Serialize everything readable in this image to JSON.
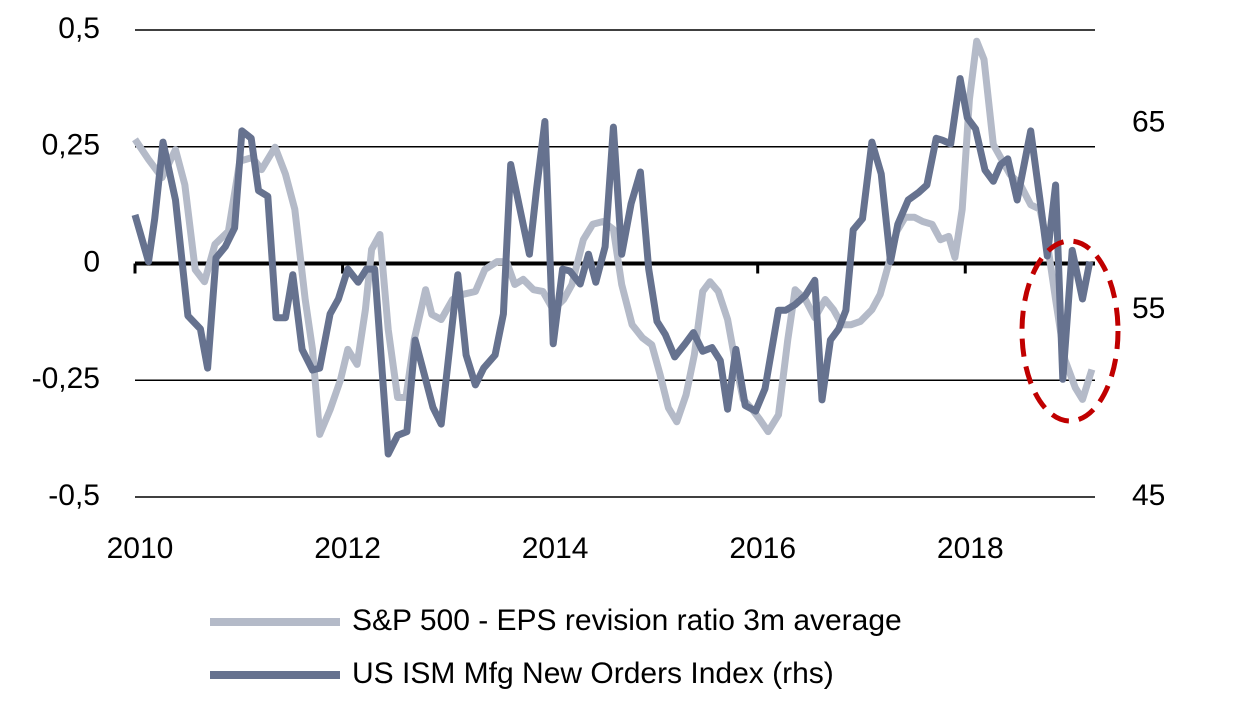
{
  "chart_data": {
    "type": "line",
    "xlim": [
      2010,
      2019.25
    ],
    "xticks": [
      2010,
      2012,
      2014,
      2016,
      2018
    ],
    "ylim": [
      -0.5,
      0.5
    ],
    "yticks": [
      {
        "value": -0.5,
        "label": "-0,5"
      },
      {
        "value": -0.25,
        "label": "-0,25"
      },
      0,
      {
        "value": 0.25,
        "label": "0,25"
      },
      {
        "value": 0.5,
        "label": "0,5"
      }
    ],
    "y2lim": [
      45,
      70
    ],
    "y2ticks": [
      45,
      55,
      65
    ],
    "grid": true,
    "legend": "bottom",
    "series": [
      {
        "name": "S&P 500 - EPS revision ratio 3m average",
        "color": "#b4bac8",
        "x": [
          2010.0,
          2010.13,
          2010.26,
          2010.39,
          2010.48,
          2010.58,
          2010.67,
          2010.77,
          2010.9,
          2011.01,
          2011.13,
          2011.22,
          2011.35,
          2011.45,
          2011.54,
          2011.64,
          2011.71,
          2011.78,
          2011.88,
          2011.98,
          2012.05,
          2012.14,
          2012.22,
          2012.28,
          2012.36,
          2012.44,
          2012.53,
          2012.61,
          2012.69,
          2012.8,
          2012.86,
          2012.95,
          2013.06,
          2013.16,
          2013.28,
          2013.37,
          2013.49,
          2013.58,
          2013.66,
          2013.74,
          2013.84,
          2013.93,
          2014.03,
          2014.13,
          2014.21,
          2014.32,
          2014.41,
          2014.51,
          2014.61,
          2014.69,
          2014.79,
          2014.89,
          2014.98,
          2015.06,
          2015.14,
          2015.22,
          2015.31,
          2015.39,
          2015.47,
          2015.54,
          2015.62,
          2015.71,
          2015.78,
          2015.86,
          2015.95,
          2016.02,
          2016.1,
          2016.2,
          2016.29,
          2016.36,
          2016.46,
          2016.55,
          2016.65,
          2016.73,
          2016.81,
          2016.9,
          2016.99,
          2017.1,
          2017.18,
          2017.26,
          2017.34,
          2017.42,
          2017.51,
          2017.59,
          2017.68,
          2017.76,
          2017.84,
          2017.9,
          2017.97,
          2018.04,
          2018.11,
          2018.18,
          2018.27,
          2018.34,
          2018.43,
          2018.53,
          2018.63,
          2018.72,
          2018.8,
          2018.87,
          2018.96,
          2019.06,
          2019.13,
          2019.22
        ],
        "values": [
          0.266,
          0.223,
          0.184,
          0.244,
          0.169,
          -0.013,
          -0.039,
          0.041,
          0.069,
          0.219,
          0.227,
          0.201,
          0.249,
          0.191,
          0.116,
          -0.077,
          -0.184,
          -0.366,
          -0.313,
          -0.249,
          -0.184,
          -0.216,
          -0.099,
          0.03,
          0.062,
          -0.141,
          -0.287,
          -0.287,
          -0.163,
          -0.056,
          -0.109,
          -0.12,
          -0.077,
          -0.066,
          -0.06,
          -0.013,
          0.004,
          0.004,
          -0.045,
          -0.034,
          -0.056,
          -0.06,
          -0.099,
          -0.077,
          -0.045,
          0.051,
          0.084,
          0.09,
          0.073,
          -0.045,
          -0.131,
          -0.159,
          -0.174,
          -0.238,
          -0.309,
          -0.339,
          -0.281,
          -0.195,
          -0.06,
          -0.039,
          -0.06,
          -0.12,
          -0.206,
          -0.291,
          -0.313,
          -0.334,
          -0.36,
          -0.324,
          -0.163,
          -0.056,
          -0.077,
          -0.116,
          -0.077,
          -0.099,
          -0.131,
          -0.131,
          -0.124,
          -0.099,
          -0.066,
          -0.002,
          0.069,
          0.099,
          0.099,
          0.09,
          0.084,
          0.051,
          0.058,
          0.013,
          0.116,
          0.351,
          0.476,
          0.437,
          0.255,
          0.227,
          0.191,
          0.169,
          0.126,
          0.116,
          0.03,
          -0.077,
          -0.206,
          -0.266,
          -0.291,
          -0.227
        ]
      },
      {
        "name": "US ISM Mfg New Orders Index (rhs)",
        "color": "#66728f",
        "axis": "y2",
        "x": [
          2010.0,
          2010.13,
          2010.19,
          2010.27,
          2010.39,
          2010.51,
          2010.63,
          2010.7,
          2010.78,
          2010.87,
          2010.96,
          2011.03,
          2011.12,
          2011.19,
          2011.28,
          2011.36,
          2011.45,
          2011.52,
          2011.61,
          2011.71,
          2011.78,
          2011.88,
          2011.96,
          2012.05,
          2012.15,
          2012.23,
          2012.31,
          2012.44,
          2012.53,
          2012.62,
          2012.7,
          2012.8,
          2012.87,
          2012.95,
          2013.04,
          2013.11,
          2013.19,
          2013.28,
          2013.36,
          2013.47,
          2013.55,
          2013.62,
          2013.71,
          2013.8,
          2013.87,
          2013.95,
          2014.03,
          2014.12,
          2014.19,
          2014.29,
          2014.37,
          2014.44,
          2014.53,
          2014.61,
          2014.69,
          2014.78,
          2014.87,
          2014.95,
          2015.03,
          2015.11,
          2015.2,
          2015.3,
          2015.38,
          2015.47,
          2015.56,
          2015.64,
          2015.71,
          2015.79,
          2015.88,
          2015.98,
          2016.07,
          2016.2,
          2016.27,
          2016.36,
          2016.46,
          2016.55,
          2016.62,
          2016.7,
          2016.78,
          2016.85,
          2016.92,
          2017.01,
          2017.1,
          2017.19,
          2017.28,
          2017.35,
          2017.45,
          2017.55,
          2017.63,
          2017.72,
          2017.78,
          2017.86,
          2017.95,
          2018.02,
          2018.1,
          2018.19,
          2018.27,
          2018.34,
          2018.41,
          2018.5,
          2018.63,
          2018.72,
          2018.79,
          2018.87,
          2018.94,
          2019.03,
          2019.13,
          2019.2
        ],
        "values": [
          60.1,
          57.6,
          59.9,
          64.0,
          60.9,
          54.7,
          54.0,
          51.9,
          57.8,
          58.4,
          59.4,
          64.6,
          64.2,
          61.4,
          61.1,
          54.6,
          54.6,
          56.9,
          52.9,
          51.8,
          51.9,
          54.8,
          55.6,
          57.2,
          56.5,
          57.2,
          57.2,
          47.3,
          48.3,
          48.5,
          53.4,
          51.3,
          49.8,
          48.9,
          53.4,
          56.9,
          52.6,
          51.0,
          51.9,
          52.6,
          54.8,
          62.8,
          60.4,
          58.0,
          61.5,
          65.1,
          53.2,
          57.2,
          57.1,
          56.4,
          58.0,
          56.5,
          58.4,
          64.8,
          58.0,
          60.7,
          62.4,
          57.2,
          54.4,
          53.7,
          52.5,
          53.2,
          53.8,
          52.8,
          53.0,
          52.3,
          49.7,
          52.9,
          49.9,
          49.6,
          50.8,
          55.0,
          55.0,
          55.3,
          55.8,
          56.6,
          50.2,
          53.4,
          54.0,
          55.0,
          59.3,
          59.9,
          64.0,
          62.3,
          57.6,
          59.6,
          60.9,
          61.3,
          61.7,
          64.2,
          64.1,
          63.9,
          67.4,
          65.3,
          64.7,
          62.5,
          61.9,
          62.8,
          63.1,
          60.9,
          64.6,
          60.9,
          57.9,
          61.7,
          51.3,
          58.2,
          55.6,
          57.6
        ]
      }
    ]
  }
}
